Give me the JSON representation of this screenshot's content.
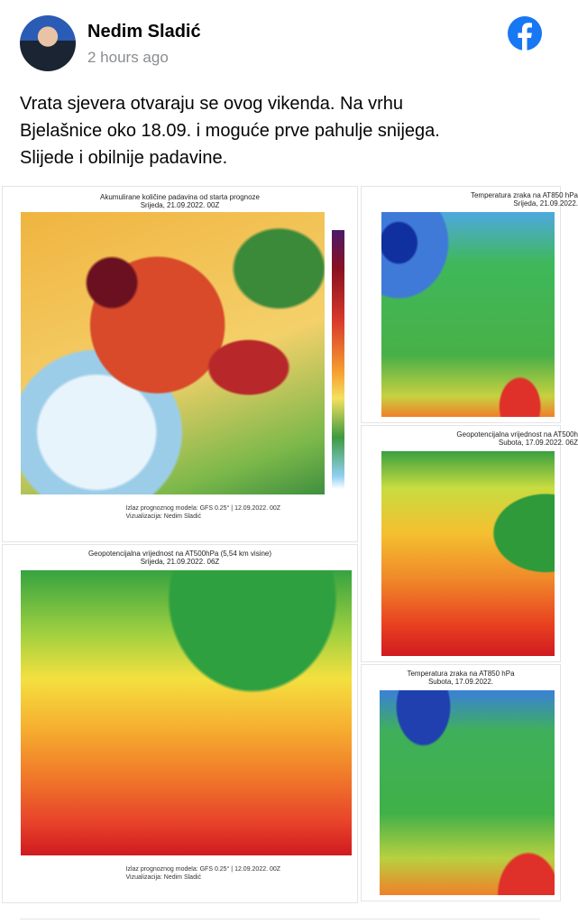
{
  "header": {
    "name": "Nedim Sladić",
    "time": "2 hours ago"
  },
  "post": {
    "lines": [
      "Vrata sjevera otvaraju se ovog vikenda. Na vrhu",
      "Bjelašnice oko 18.09. i moguće prve pahulje snijega.",
      "Slijede i obilnije padavine."
    ]
  },
  "images": [
    {
      "title": "Akumulirane količine padavina od starta prognoze",
      "subtitle": "Srijeda, 21.09.2022. 00Z",
      "footer": [
        "Izlaz prognoznog modela: GFS 0.25° | 12.09.2022. 00Z",
        "Vizualizacija: Nedim Sladić"
      ]
    },
    {
      "title": "Temperatura zraka na AT850 hPa",
      "subtitle": "Srijeda, 21.09.2022."
    },
    {
      "title": "Geopotencijalna vrijednost na AT500hPa (5,54 km visine)",
      "subtitle": "Srijeda, 21.09.2022. 06Z",
      "footer": [
        "Izlaz prognoznog modela: GFS 0.25° | 12.09.2022. 00Z",
        "Vizualizacija: Nedim Sladić"
      ]
    },
    {
      "title": "Geopotencijalna vrijednost na AT500h",
      "subtitle": "Subota, 17.09.2022. 06Z"
    },
    {
      "title": "Temperatura zraka na AT850 hPa",
      "subtitle": "Subota, 17.09.2022."
    }
  ]
}
